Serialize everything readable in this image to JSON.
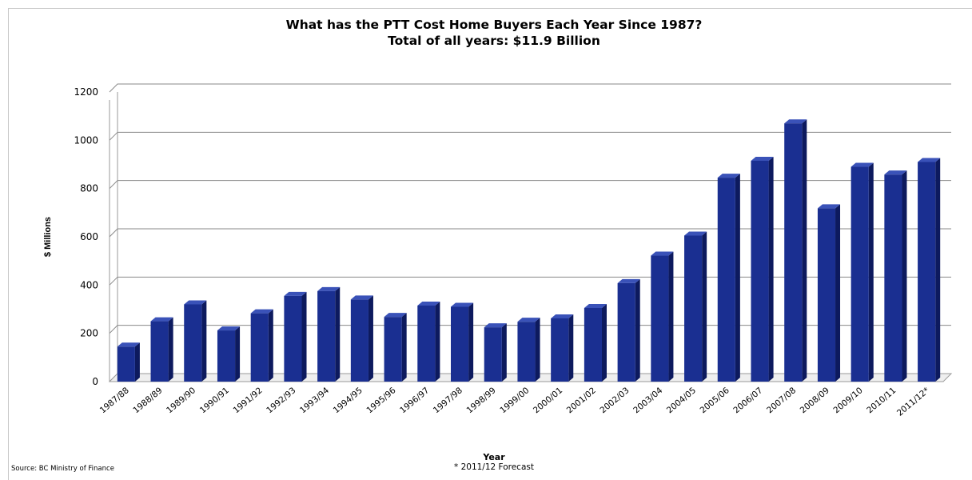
{
  "chart_data": {
    "type": "bar",
    "title": "What has the PTT Cost Home Buyers Each Year Since 1987?",
    "subtitle": "Total of all years: $11.9 Billion",
    "xlabel": "Year",
    "ylabel": "$ Millions",
    "ylim": [
      0,
      1200
    ],
    "yticks": [
      0,
      200,
      400,
      600,
      800,
      1000,
      1200
    ],
    "grid": true,
    "categories": [
      "1987/88",
      "1988/89",
      "1989/90",
      "1990/91",
      "1991/92",
      "1992/93",
      "1993/94",
      "1994/95",
      "1995/96",
      "1996/97",
      "1997/98",
      "1998/99",
      "1999/00",
      "2000/01",
      "2001/02",
      "2002/03",
      "2003/04",
      "2004/05",
      "2005/06",
      "2006/07",
      "2007/08",
      "2008/09",
      "2009/10",
      "2010/11",
      "2011/12*"
    ],
    "values": [
      145,
      250,
      320,
      212,
      283,
      355,
      375,
      340,
      268,
      315,
      310,
      225,
      248,
      262,
      305,
      408,
      522,
      605,
      845,
      915,
      1070,
      718,
      890,
      858,
      910
    ],
    "bar_color": "#1a2f91",
    "footnote": "* 2011/12 Forecast",
    "source": "Source: BC Ministry of Finance"
  }
}
